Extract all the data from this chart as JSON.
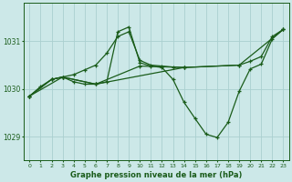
{
  "bg_color": "#cce8e8",
  "grid_color": "#aacfcf",
  "line_color": "#1a5c1a",
  "title": "Graphe pression niveau de la mer (hPa)",
  "xlim": [
    -0.5,
    23.5
  ],
  "ylim": [
    1028.5,
    1031.8
  ],
  "yticks": [
    1029,
    1030,
    1031
  ],
  "xticks": [
    0,
    1,
    2,
    3,
    4,
    5,
    6,
    7,
    8,
    9,
    10,
    11,
    12,
    13,
    14,
    15,
    16,
    17,
    18,
    19,
    20,
    21,
    22,
    23
  ],
  "series": [
    {
      "x": [
        0,
        1,
        2,
        3,
        4,
        5,
        6,
        7,
        8,
        9,
        10,
        11,
        12,
        13,
        14
      ],
      "y": [
        1029.85,
        1030.05,
        1030.2,
        1030.25,
        1030.3,
        1030.4,
        1030.5,
        1030.75,
        1031.1,
        1031.2,
        1030.6,
        1030.5,
        1030.48,
        1030.46,
        1030.45
      ]
    },
    {
      "x": [
        0,
        2,
        3,
        4,
        5,
        6,
        7,
        8,
        9,
        10,
        11,
        12,
        13,
        14,
        15,
        16,
        17,
        18,
        19,
        20,
        21,
        22,
        23
      ],
      "y": [
        1029.85,
        1030.2,
        1030.25,
        1030.15,
        1030.1,
        1030.1,
        1030.15,
        1031.2,
        1031.3,
        1030.55,
        1030.48,
        1030.45,
        1030.2,
        1029.72,
        1029.38,
        1029.05,
        1028.98,
        1029.3,
        1029.95,
        1030.42,
        1030.52,
        1031.05,
        1031.25
      ]
    },
    {
      "x": [
        0,
        2,
        3,
        6,
        14,
        19,
        20,
        21,
        22,
        23
      ],
      "y": [
        1029.85,
        1030.2,
        1030.25,
        1030.1,
        1030.45,
        1030.5,
        1030.58,
        1030.68,
        1031.1,
        1031.25
      ]
    },
    {
      "x": [
        0,
        3,
        6,
        10,
        14,
        19,
        23
      ],
      "y": [
        1029.85,
        1030.25,
        1030.1,
        1030.48,
        1030.45,
        1030.5,
        1031.25
      ]
    }
  ]
}
